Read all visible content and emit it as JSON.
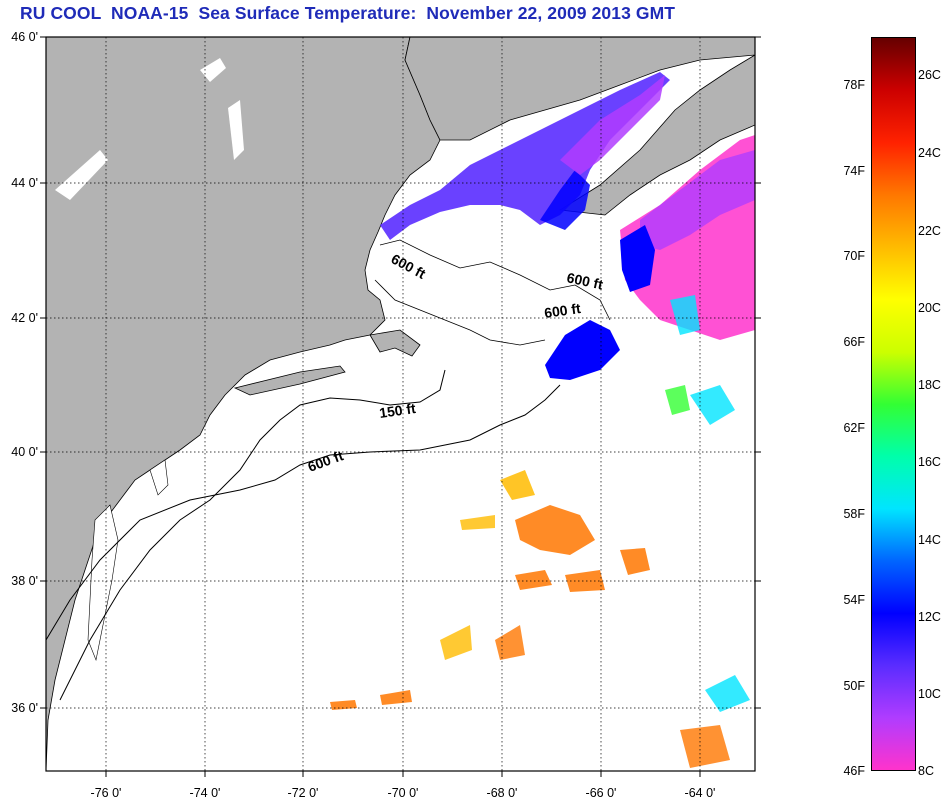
{
  "title": "RU COOL  NOAA-15  Sea Surface Temperature:  November 22, 2009 2013 GMT",
  "lat_labels": [
    "46 0'",
    "44 0'",
    "42 0'",
    "40 0'",
    "38 0'",
    "36 0'"
  ],
  "lon_labels": [
    "-76 0'",
    "-74 0'",
    "-72 0'",
    "-70 0'",
    "-68 0'",
    "-66 0'",
    "-64 0'"
  ],
  "depth_labels": [
    "600 ft",
    "600 ft",
    "600 ft",
    "150 ft",
    "600 ft"
  ],
  "colorbar": {
    "fahrenheit": [
      "78F",
      "74F",
      "70F",
      "66F",
      "62F",
      "58F",
      "54F",
      "50F",
      "46F"
    ],
    "celsius": [
      "26C",
      "24C",
      "22C",
      "20C",
      "18C",
      "16C",
      "14C",
      "12C",
      "10C",
      "8C"
    ],
    "colors_bottom_to_top": [
      "#ff33cc",
      "#b03cff",
      "#5a2cff",
      "#0000ff",
      "#0066ff",
      "#00e5ff",
      "#00ffaa",
      "#33ff33",
      "#ccff00",
      "#ffff00",
      "#ffbb00",
      "#ff7700",
      "#ff2200",
      "#cc0000",
      "#660000"
    ]
  },
  "colors": {
    "land": "#b3b3b3",
    "ocean": "#ffffff",
    "title": "#1f2bb8"
  }
}
